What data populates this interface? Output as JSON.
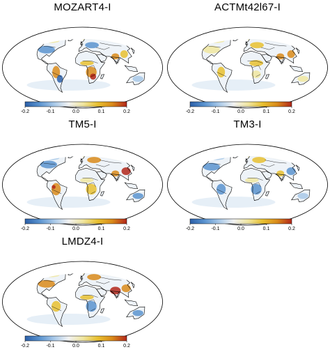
{
  "figure": {
    "panels": [
      {
        "title": "MOZART4-I"
      },
      {
        "title": "ACTMt42l67-I"
      },
      {
        "title": "TM5-I"
      },
      {
        "title": "TM3-I"
      },
      {
        "title": "LMDZ4-I"
      }
    ],
    "colorbar": {
      "ticks": [
        "-0.2",
        "-0.1",
        "0.0",
        "0.1",
        "0.2"
      ],
      "range": [
        -0.2,
        0.2
      ],
      "colors": [
        "#2b5fa8",
        "#5a93cf",
        "#a8c8e8",
        "#f2f2f2",
        "#f0e6a0",
        "#e8c030",
        "#d98a1a",
        "#b2261a"
      ]
    },
    "map": {
      "projection": "Mollweide",
      "ocean_color": "#ffffff",
      "coastline_color": "#000000"
    }
  }
}
